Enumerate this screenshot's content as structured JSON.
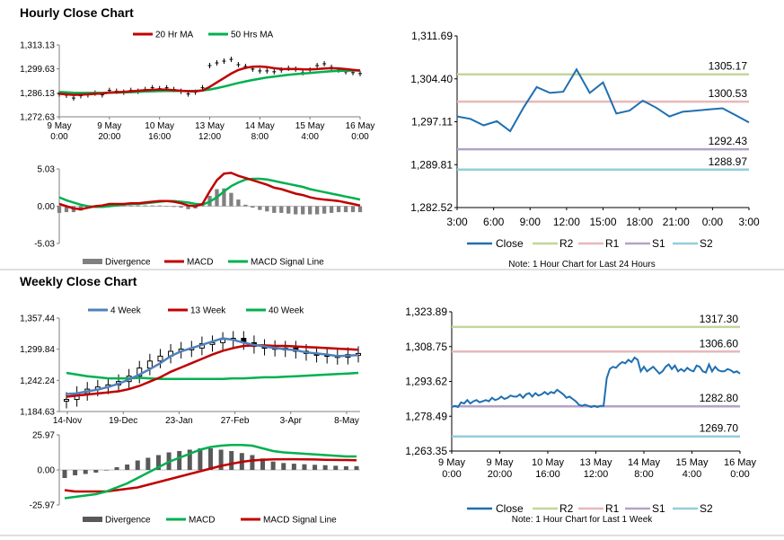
{
  "hourly": {
    "title": "Hourly Close Chart",
    "price": {
      "legend": [
        {
          "name": "20 Hr MA",
          "color": "#c00000"
        },
        {
          "name": "50 Hrs MA",
          "color": "#00b050"
        }
      ],
      "ylabels": [
        "1,313.13",
        "1,299.63",
        "1,286.13",
        "1,272.63"
      ],
      "ylim": [
        1272.63,
        1313.13
      ],
      "xlabels": [
        [
          "9 May",
          "0:00"
        ],
        [
          "9 May",
          "20:00"
        ],
        [
          "10 May",
          "16:00"
        ],
        [
          "13 May",
          "12:00"
        ],
        [
          "14 May",
          "8:00"
        ],
        [
          "15 May",
          "4:00"
        ],
        [
          "16 May",
          "0:00"
        ]
      ],
      "close": [
        1285.5,
        1284.8,
        1283.2,
        1284.5,
        1285.0,
        1286.0,
        1285.0,
        1287.5,
        1287.0,
        1286.5,
        1287.5,
        1287.0,
        1288.0,
        1289.0,
        1288.5,
        1289.0,
        1288.0,
        1287.0,
        1285.5,
        1286.5,
        1289.0,
        1301.5,
        1303.0,
        1304.0,
        1305.0,
        1302.0,
        1301.0,
        1299.5,
        1298.5,
        1298.5,
        1298.0,
        1299.0,
        1300.0,
        1299.5,
        1297.5,
        1299.0,
        1301.5,
        1302.5,
        1300.5,
        1299.0,
        1298.0,
        1297.5,
        1297.0
      ],
      "ma20": [
        1285.6,
        1285.3,
        1285.0,
        1285.1,
        1285.3,
        1285.6,
        1285.8,
        1286.3,
        1286.5,
        1286.7,
        1287.0,
        1287.3,
        1287.6,
        1287.8,
        1288.0,
        1287.9,
        1287.6,
        1287.3,
        1287.0,
        1287.0,
        1287.5,
        1289.5,
        1292.0,
        1294.5,
        1297.0,
        1299.0,
        1300.2,
        1300.9,
        1301.0,
        1300.7,
        1300.0,
        1299.6,
        1299.5,
        1299.6,
        1299.4,
        1299.3,
        1299.5,
        1299.8,
        1300.0,
        1299.9,
        1299.5,
        1299.1,
        1298.7
      ],
      "ma50": [
        1286.6,
        1286.4,
        1286.2,
        1286.1,
        1286.1,
        1286.1,
        1286.1,
        1286.2,
        1286.3,
        1286.4,
        1286.5,
        1286.7,
        1286.9,
        1287.0,
        1287.1,
        1287.2,
        1287.2,
        1287.2,
        1287.2,
        1287.2,
        1287.4,
        1288.0,
        1288.8,
        1289.7,
        1290.7,
        1291.7,
        1292.6,
        1293.4,
        1294.1,
        1294.8,
        1295.3,
        1295.8,
        1296.3,
        1296.7,
        1297.0,
        1297.3,
        1297.7,
        1298.0,
        1298.3,
        1298.5,
        1298.6,
        1298.7,
        1298.7
      ]
    },
    "macd": {
      "legend": [
        {
          "name": "Divergence",
          "color": "#808080"
        },
        {
          "name": "MACD",
          "color": "#c00000"
        },
        {
          "name": "MACD Signal Line",
          "color": "#00b050"
        }
      ],
      "ylabels": [
        "5.03",
        "0.00",
        "-5.03"
      ],
      "ylim": [
        -5.03,
        5.03
      ],
      "macd": [
        0.3,
        0.0,
        -0.3,
        -0.4,
        -0.2,
        0.0,
        0.1,
        0.3,
        0.3,
        0.3,
        0.4,
        0.4,
        0.5,
        0.6,
        0.7,
        0.7,
        0.6,
        0.4,
        0.1,
        0.0,
        0.3,
        2.0,
        3.5,
        4.4,
        4.5,
        4.1,
        3.8,
        3.5,
        3.2,
        2.9,
        2.5,
        2.3,
        2.0,
        1.7,
        1.5,
        1.2,
        1.0,
        0.9,
        0.8,
        0.7,
        0.5,
        0.3,
        0.1
      ],
      "signal": [
        1.2,
        0.8,
        0.5,
        0.2,
        0.0,
        -0.1,
        -0.1,
        0.0,
        0.1,
        0.2,
        0.3,
        0.3,
        0.4,
        0.5,
        0.6,
        0.7,
        0.7,
        0.6,
        0.5,
        0.3,
        0.2,
        0.6,
        1.2,
        2.0,
        2.7,
        3.2,
        3.6,
        3.7,
        3.7,
        3.6,
        3.4,
        3.2,
        3.0,
        2.8,
        2.6,
        2.3,
        2.1,
        1.9,
        1.7,
        1.5,
        1.3,
        1.1,
        0.9
      ],
      "divergence": [
        -0.9,
        -0.8,
        -0.8,
        -0.6,
        -0.2,
        0.1,
        0.2,
        0.3,
        0.2,
        0.1,
        0.1,
        0.1,
        0.1,
        0.1,
        0.1,
        0.0,
        -0.1,
        -0.2,
        -0.4,
        -0.3,
        0.1,
        1.4,
        2.3,
        2.4,
        1.8,
        0.9,
        0.2,
        -0.2,
        -0.5,
        -0.7,
        -0.9,
        -0.9,
        -1.0,
        -1.1,
        -1.1,
        -1.1,
        -1.1,
        -1.0,
        -0.9,
        -0.8,
        -0.8,
        -0.8,
        -0.8
      ]
    },
    "pivot": {
      "ylabels": [
        "1,311.69",
        "1,304.40",
        "1,297.11",
        "1,289.81",
        "1,282.52"
      ],
      "ylim": [
        1282.52,
        1311.69
      ],
      "xlabels": [
        "3:00",
        "6:00",
        "9:00",
        "12:00",
        "15:00",
        "18:00",
        "21:00",
        "0:00",
        "3:00"
      ],
      "close": [
        1298.0,
        1297.6,
        1296.5,
        1297.2,
        1295.5,
        1299.5,
        1303.0,
        1302.0,
        1302.2,
        1306.0,
        1302.0,
        1303.8,
        1298.5,
        1299.0,
        1300.7,
        1299.5,
        1298.0,
        1298.8,
        1299.0,
        1299.2,
        1299.4,
        1298.2,
        1297.0
      ],
      "levels": [
        {
          "name": "R2",
          "value": 1305.17,
          "label": "1305.17",
          "color": "#c3d69b"
        },
        {
          "name": "R1",
          "value": 1300.53,
          "label": "1300.53",
          "color": "#e6b9b8"
        },
        {
          "name": "S1",
          "value": 1292.43,
          "label": "1292.43",
          "color": "#b3a2c7"
        },
        {
          "name": "S2",
          "value": 1288.97,
          "label": "1288.97",
          "color": "#93cddd"
        }
      ],
      "legend_close": "Close",
      "close_color": "#1f6fb2",
      "note": "Note: 1 Hour Chart for Last 24 Hours"
    }
  },
  "weekly": {
    "title": "Weekly Close Chart",
    "price": {
      "legend": [
        {
          "name": "4 Week",
          "color": "#4f81bd"
        },
        {
          "name": "13 Week",
          "color": "#c00000"
        },
        {
          "name": "40 Week",
          "color": "#00b050"
        }
      ],
      "ylabels": [
        "1,357.44",
        "1,299.84",
        "1,242.24",
        "1,184.63"
      ],
      "ylim": [
        1184.63,
        1357.44
      ],
      "xlabels": [
        "14-Nov",
        "19-Dec",
        "23-Jan",
        "27-Feb",
        "3-Apr",
        "8-May"
      ],
      "close": [
        1207,
        1218,
        1226,
        1230,
        1234,
        1240,
        1250,
        1265,
        1278,
        1287,
        1296,
        1300,
        1302,
        1310,
        1312,
        1318,
        1320,
        1312,
        1305,
        1303,
        1300,
        1302,
        1296,
        1292,
        1290,
        1288,
        1285,
        1290,
        1292
      ],
      "w4": [
        1217,
        1218,
        1222,
        1225,
        1230,
        1236,
        1244,
        1253,
        1263,
        1274,
        1287,
        1296,
        1302,
        1308,
        1314,
        1320,
        1317,
        1312,
        1308,
        1305,
        1302,
        1300,
        1298,
        1294,
        1292,
        1290,
        1287,
        1288,
        1289
      ],
      "w13": [
        1212,
        1214,
        1216,
        1218,
        1220,
        1222,
        1226,
        1232,
        1240,
        1248,
        1258,
        1266,
        1274,
        1282,
        1290,
        1297,
        1302,
        1306,
        1307,
        1307,
        1306,
        1306,
        1305,
        1304,
        1303,
        1302,
        1301,
        1300,
        1299
      ],
      "w40": [
        1256,
        1253,
        1250,
        1248,
        1246,
        1246,
        1246,
        1247,
        1246,
        1245,
        1245,
        1245,
        1245,
        1245,
        1245,
        1245,
        1246,
        1246,
        1247,
        1248,
        1248,
        1249,
        1250,
        1251,
        1252,
        1253,
        1254,
        1255,
        1256
      ]
    },
    "macd": {
      "legend": [
        {
          "name": "Divergence",
          "color": "#595959"
        },
        {
          "name": "MACD",
          "color": "#00b050"
        },
        {
          "name": "MACD Signal Line",
          "color": "#c00000"
        }
      ],
      "ylabels": [
        "25.97",
        "0.00",
        "-25.97"
      ],
      "ylim": [
        -25.97,
        25.97
      ],
      "macd": [
        -21,
        -20,
        -19,
        -18,
        -16,
        -13,
        -10,
        -6,
        -2,
        2,
        6,
        9,
        12,
        15,
        17,
        18,
        18.5,
        18.5,
        18,
        16,
        14,
        13,
        12.5,
        12,
        11.5,
        11,
        10.5,
        10,
        10
      ],
      "signal": [
        -15,
        -16,
        -16,
        -16,
        -16,
        -15,
        -14,
        -13,
        -11,
        -9,
        -7,
        -5,
        -3,
        -1,
        1,
        3,
        4.5,
        6,
        7,
        7.5,
        7.8,
        7.9,
        7.9,
        7.8,
        7.7,
        7.5,
        7.4,
        7.3,
        7.2
      ],
      "divergence": [
        -6,
        -4,
        -3,
        -2,
        0,
        2,
        4,
        7,
        9,
        11,
        13,
        14,
        15,
        16,
        16,
        15,
        14,
        12.5,
        11,
        8.5,
        6.2,
        5.1,
        4.6,
        4.2,
        3.8,
        3.5,
        3.1,
        2.7,
        2.8
      ]
    },
    "pivot": {
      "ylabels": [
        "1,323.89",
        "1,308.75",
        "1,293.62",
        "1,278.49",
        "1,263.35"
      ],
      "ylim": [
        1263.35,
        1323.89
      ],
      "xlabels": [
        [
          "9 May",
          "0:00"
        ],
        [
          "9 May",
          "20:00"
        ],
        [
          "10 May",
          "16:00"
        ],
        [
          "13 May",
          "12:00"
        ],
        [
          "14 May",
          "8:00"
        ],
        [
          "15 May",
          "4:00"
        ],
        [
          "16 May",
          "0:00"
        ]
      ],
      "close": [
        1282.5,
        1283.0,
        1282.5,
        1284.5,
        1284.0,
        1285.5,
        1284.0,
        1285.0,
        1285.5,
        1284.5,
        1285.0,
        1285.5,
        1285.0,
        1286.5,
        1285.5,
        1286.0,
        1287.0,
        1286.0,
        1286.5,
        1287.5,
        1287.0,
        1287.0,
        1288.0,
        1286.5,
        1288.0,
        1288.5,
        1287.0,
        1288.5,
        1287.5,
        1288.0,
        1289.0,
        1288.0,
        1289.0,
        1288.5,
        1290.0,
        1289.0,
        1288.0,
        1286.5,
        1287.0,
        1286.0,
        1285.0,
        1283.5,
        1283.0,
        1283.5,
        1283.0,
        1282.5,
        1283.0,
        1282.5,
        1283.0,
        1283.0,
        1295.0,
        1299.0,
        1300.0,
        1299.5,
        1301.0,
        1302.0,
        1301.5,
        1303.0,
        1302.0,
        1304.0,
        1303.0,
        1298.0,
        1300.0,
        1298.0,
        1299.0,
        1300.0,
        1298.5,
        1297.0,
        1298.0,
        1300.0,
        1301.0,
        1299.0,
        1300.5,
        1298.0,
        1299.0,
        1298.0,
        1299.5,
        1298.5,
        1298.0,
        1300.5,
        1300.0,
        1298.0,
        1297.5,
        1301.0,
        1298.0,
        1300.0,
        1298.5,
        1298.0,
        1298.0,
        1299.0,
        1298.5,
        1297.5,
        1298.0,
        1297.0
      ],
      "levels": [
        {
          "name": "R2",
          "value": 1317.3,
          "label": "1317.30",
          "color": "#c3d69b"
        },
        {
          "name": "R1",
          "value": 1306.6,
          "label": "1306.60",
          "color": "#e6b9b8"
        },
        {
          "name": "S1",
          "value": 1282.8,
          "label": "1282.80",
          "color": "#b3a2c7"
        },
        {
          "name": "S2",
          "value": 1269.7,
          "label": "1269.70",
          "color": "#93cddd"
        }
      ],
      "legend_close": "Close",
      "close_color": "#1f6fb2",
      "note": "Note: 1 Hour Chart for Last 1 Week"
    }
  }
}
